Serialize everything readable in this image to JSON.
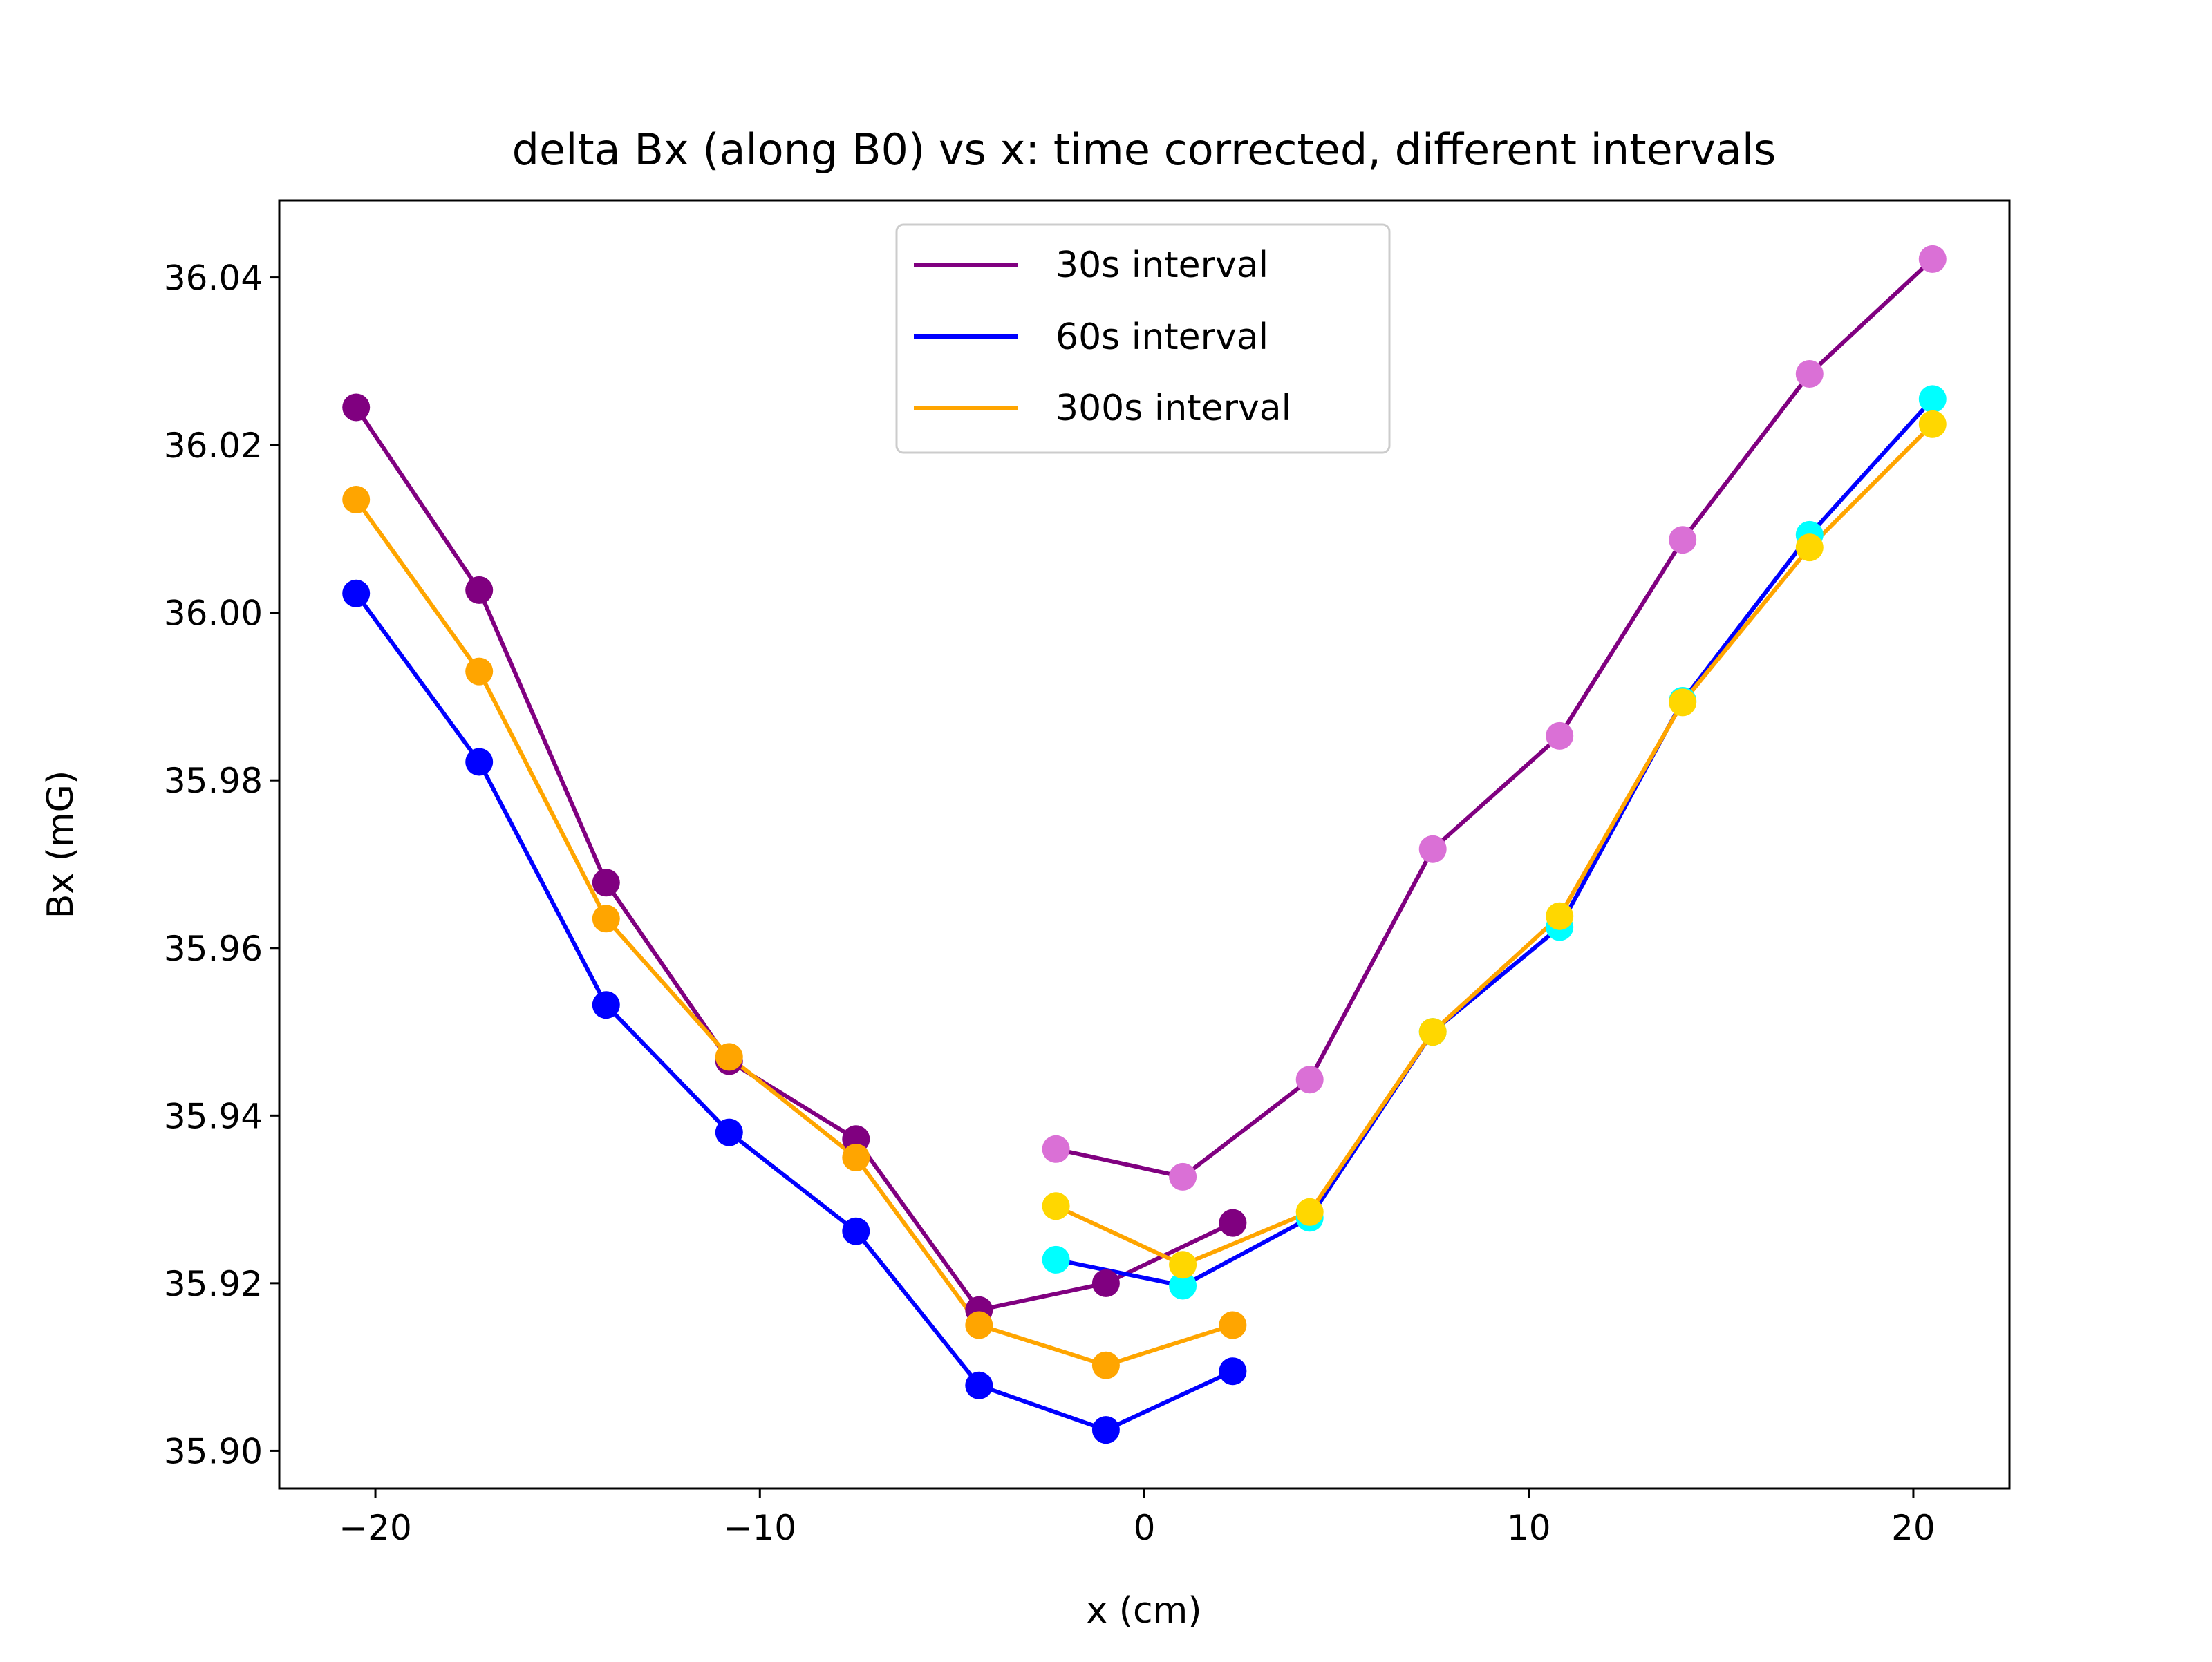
{
  "chart_data": {
    "type": "line",
    "title": "delta Bx (along B0) vs x: time corrected, different intervals",
    "xlabel": "x (cm)",
    "ylabel": "Bx (mG)",
    "xlim": [
      -22.5,
      22.5
    ],
    "ylim": [
      35.8955,
      36.0492
    ],
    "xticks": [
      -20,
      -10,
      0,
      10,
      20
    ],
    "xtick_labels": [
      "−20",
      "−10",
      "0",
      "10",
      "20"
    ],
    "yticks": [
      35.9,
      35.92,
      35.94,
      35.96,
      35.98,
      36.0,
      36.02,
      36.04
    ],
    "ytick_labels": [
      "35.90",
      "35.92",
      "35.94",
      "35.96",
      "35.98",
      "36.00",
      "36.02",
      "36.04"
    ],
    "grid": false,
    "legend_position": "top-center",
    "legend": [
      {
        "label": "30s interval",
        "color": "#800080"
      },
      {
        "label": "60s interval",
        "color": "#0000ff"
      },
      {
        "label": "300s interval",
        "color": "#ffa500"
      }
    ],
    "series": [
      {
        "group": "30s interval",
        "line_color": "#800080",
        "marker_color": "#800080",
        "points": [
          {
            "x": -20.5,
            "y": 36.0245
          },
          {
            "x": -17.3,
            "y": 36.0027
          },
          {
            "x": -14.0,
            "y": 35.9678
          },
          {
            "x": -10.8,
            "y": 35.9465
          },
          {
            "x": -7.5,
            "y": 35.9372
          },
          {
            "x": -4.3,
            "y": 35.9168
          },
          {
            "x": -1.0,
            "y": 35.92
          },
          {
            "x": 2.3,
            "y": 35.9272
          }
        ]
      },
      {
        "group": "60s interval",
        "line_color": "#0000ff",
        "marker_color": "#0000ff",
        "points": [
          {
            "x": -20.5,
            "y": 36.0023
          },
          {
            "x": -17.3,
            "y": 35.9822
          },
          {
            "x": -14.0,
            "y": 35.9532
          },
          {
            "x": -10.8,
            "y": 35.938
          },
          {
            "x": -7.5,
            "y": 35.9262
          },
          {
            "x": -4.3,
            "y": 35.9078
          },
          {
            "x": -1.0,
            "y": 35.9025
          },
          {
            "x": 2.3,
            "y": 35.9095
          }
        ]
      },
      {
        "group": "300s interval",
        "line_color": "#ffa500",
        "marker_color": "#ffa500",
        "points": [
          {
            "x": -20.5,
            "y": 36.0135
          },
          {
            "x": -17.3,
            "y": 35.993
          },
          {
            "x": -14.0,
            "y": 35.9635
          },
          {
            "x": -10.8,
            "y": 35.947
          },
          {
            "x": -7.5,
            "y": 35.935
          },
          {
            "x": -4.3,
            "y": 35.915
          },
          {
            "x": -1.0,
            "y": 35.9102
          },
          {
            "x": 2.3,
            "y": 35.915
          }
        ]
      },
      {
        "group": "30s interval",
        "line_color": "#800080",
        "marker_color": "#da70d6",
        "points": [
          {
            "x": -2.3,
            "y": 35.936
          },
          {
            "x": 1.0,
            "y": 35.9327
          },
          {
            "x": 4.3,
            "y": 35.9443
          },
          {
            "x": 7.5,
            "y": 35.9718
          },
          {
            "x": 10.8,
            "y": 35.9853
          },
          {
            "x": 14.0,
            "y": 36.0087
          },
          {
            "x": 17.3,
            "y": 36.0285
          },
          {
            "x": 20.5,
            "y": 36.0422
          }
        ]
      },
      {
        "group": "60s interval",
        "line_color": "#0000ff",
        "marker_color": "#00ffff",
        "points": [
          {
            "x": -2.3,
            "y": 35.9228
          },
          {
            "x": 1.0,
            "y": 35.9197
          },
          {
            "x": 4.3,
            "y": 35.9278
          },
          {
            "x": 7.5,
            "y": 35.95
          },
          {
            "x": 10.8,
            "y": 35.9625
          },
          {
            "x": 14.0,
            "y": 35.9895
          },
          {
            "x": 17.3,
            "y": 36.0093
          },
          {
            "x": 20.5,
            "y": 36.0255
          }
        ]
      },
      {
        "group": "300s interval",
        "line_color": "#ffa500",
        "marker_color": "#ffd700",
        "points": [
          {
            "x": -2.3,
            "y": 35.9292
          },
          {
            "x": 1.0,
            "y": 35.9222
          },
          {
            "x": 4.3,
            "y": 35.9285
          },
          {
            "x": 7.5,
            "y": 35.95
          },
          {
            "x": 10.8,
            "y": 35.9638
          },
          {
            "x": 14.0,
            "y": 35.9893
          },
          {
            "x": 17.3,
            "y": 36.0078
          },
          {
            "x": 20.5,
            "y": 36.0225
          }
        ]
      }
    ]
  }
}
